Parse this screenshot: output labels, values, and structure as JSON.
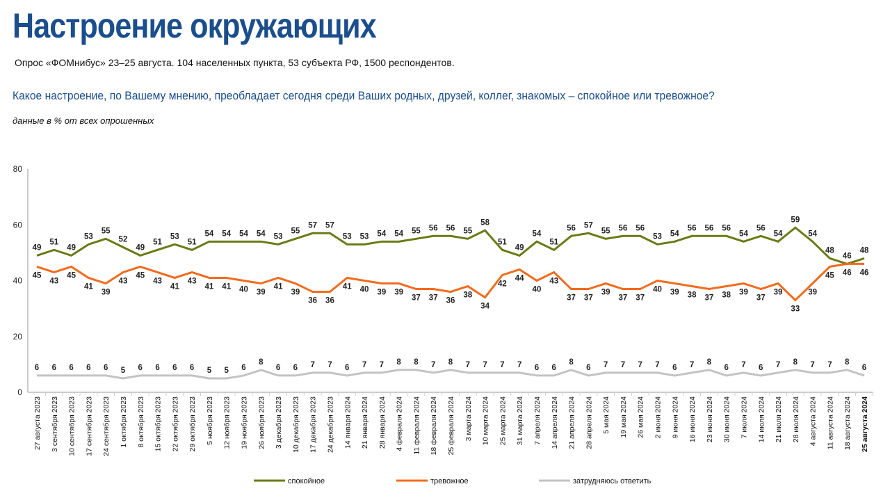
{
  "header": {
    "title": "Настроение окружающих",
    "subtitle": "Опрос «ФОМнибус» 23–25 августа. 104 населенных пункта, 53 субъекта РФ, 1500 респондентов.",
    "question": "Какое настроение, по Вашему мнению, преобладает сегодня среди Ваших родных, друзей, коллег, знакомых – спокойное или тревожное?",
    "note": "данные в % от всех опрошенных"
  },
  "chart_data": {
    "type": "line",
    "title": "Какое настроение, по Вашему мнению, преобладает сегодня среди Ваших родных, друзей, коллег, знакомых – спокойное или тревожное?",
    "xlabel": "",
    "ylabel": "",
    "ylim": [
      0,
      80
    ],
    "yticks": [
      0,
      20,
      40,
      60,
      80
    ],
    "legend": "bottom",
    "categories": [
      "27 августа 2023",
      "3 сентября 2023",
      "10 сентября 2023",
      "17 сентября 2023",
      "24 сентября 2023",
      "1 октября 2023",
      "8 октября 2023",
      "15 октября 2023",
      "22 октября 2023",
      "29 октября 2023",
      "5 ноября 2023",
      "12 ноября 2023",
      "19 ноября 2023",
      "26 ноября 2023",
      "3 декабря 2023",
      "10 декабря 2023",
      "17 декабря 2023",
      "24 декабря 2023",
      "14 января 2024",
      "21 января 2024",
      "28 января 2024",
      "4 февраля 2024",
      "11 февраля 2024",
      "18 февраля 2024",
      "25 февраля 2024",
      "3 марта 2024",
      "10 марта 2024",
      "25 марта 2024",
      "31 марта 2024",
      "7 апреля 2024",
      "14 апреля 2024",
      "21 апреля 2024",
      "28 апреля 2024",
      "5 мая 2024",
      "19 мая 2024",
      "26 мая 2024",
      "2 июня 2024",
      "9 июня 2024",
      "16 июня 2024",
      "23 июня 2024",
      "30 июня 2024",
      "7 июля 2024",
      "14 июля 2024",
      "21 июля 2024",
      "28 июля 2024",
      "4 августа 2024",
      "11 августа 2024",
      "18 августа 2024",
      "25 августа 2024"
    ],
    "series": [
      {
        "name": "спокойное",
        "color": "#6b7a16",
        "values": [
          49,
          51,
          49,
          53,
          55,
          52,
          49,
          51,
          53,
          51,
          54,
          54,
          54,
          54,
          53,
          55,
          57,
          57,
          53,
          53,
          54,
          54,
          55,
          56,
          56,
          55,
          58,
          51,
          49,
          54,
          51,
          56,
          57,
          55,
          56,
          56,
          53,
          54,
          56,
          56,
          56,
          54,
          56,
          54,
          59,
          54,
          48,
          46,
          48
        ],
        "label_pos": "above"
      },
      {
        "name": "тревожное",
        "color": "#f26b1d",
        "values": [
          45,
          43,
          45,
          41,
          39,
          43,
          45,
          43,
          41,
          43,
          41,
          41,
          40,
          39,
          41,
          39,
          36,
          36,
          41,
          40,
          39,
          39,
          37,
          37,
          36,
          38,
          34,
          42,
          44,
          40,
          43,
          37,
          37,
          39,
          37,
          37,
          40,
          39,
          38,
          37,
          38,
          39,
          37,
          39,
          33,
          39,
          45,
          46,
          46
        ],
        "label_pos": "below"
      },
      {
        "name": "затрудняюсь ответить",
        "color": "#c3c3c3",
        "values": [
          6,
          6,
          6,
          6,
          6,
          5,
          6,
          6,
          6,
          6,
          5,
          5,
          6,
          8,
          6,
          6,
          7,
          7,
          6,
          7,
          7,
          8,
          8,
          7,
          8,
          7,
          7,
          7,
          7,
          6,
          6,
          8,
          6,
          7,
          7,
          7,
          7,
          6,
          7,
          8,
          6,
          7,
          6,
          7,
          8,
          7,
          7,
          8,
          6
        ],
        "label_pos": "above"
      }
    ]
  }
}
